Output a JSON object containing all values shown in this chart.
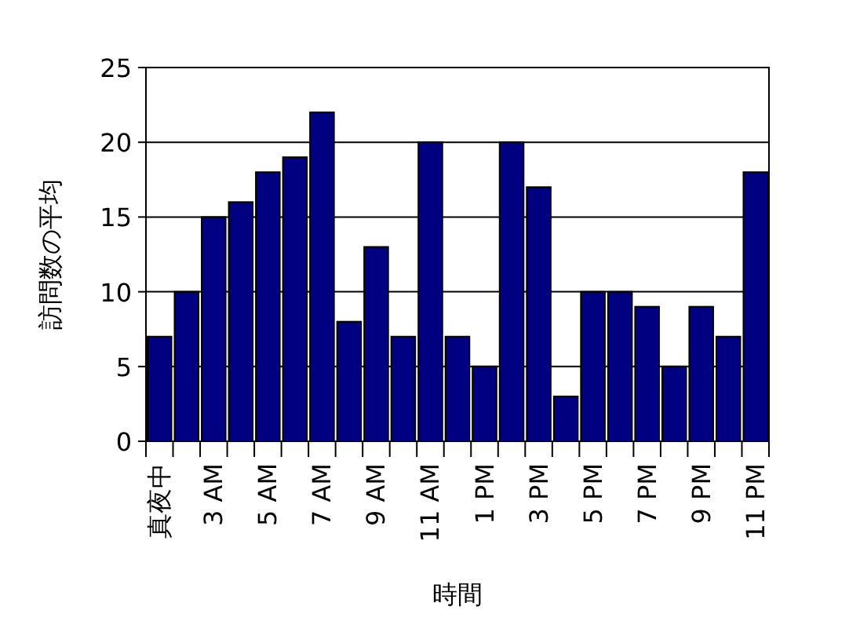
{
  "chart_data": {
    "type": "bar",
    "xlabel": "時間",
    "ylabel": "訪問数の平均",
    "categories": [
      "真夜中",
      null,
      "3 AM",
      null,
      "5 AM",
      null,
      "7 AM",
      null,
      "9 AM",
      null,
      "11 AM",
      null,
      "1 PM",
      null,
      "3 PM",
      null,
      "5 PM",
      null,
      "7 PM",
      null,
      "9 PM",
      null,
      "11 PM"
    ],
    "values": [
      7,
      10,
      15,
      16,
      18,
      19,
      22,
      8,
      13,
      7,
      20,
      7,
      5,
      20,
      17,
      3,
      10,
      10,
      9,
      5,
      9,
      7,
      18
    ],
    "color": "#000080",
    "ylim": [
      0,
      25
    ],
    "yticks": [
      0,
      5,
      10,
      15,
      20,
      25
    ],
    "grid": "y"
  }
}
